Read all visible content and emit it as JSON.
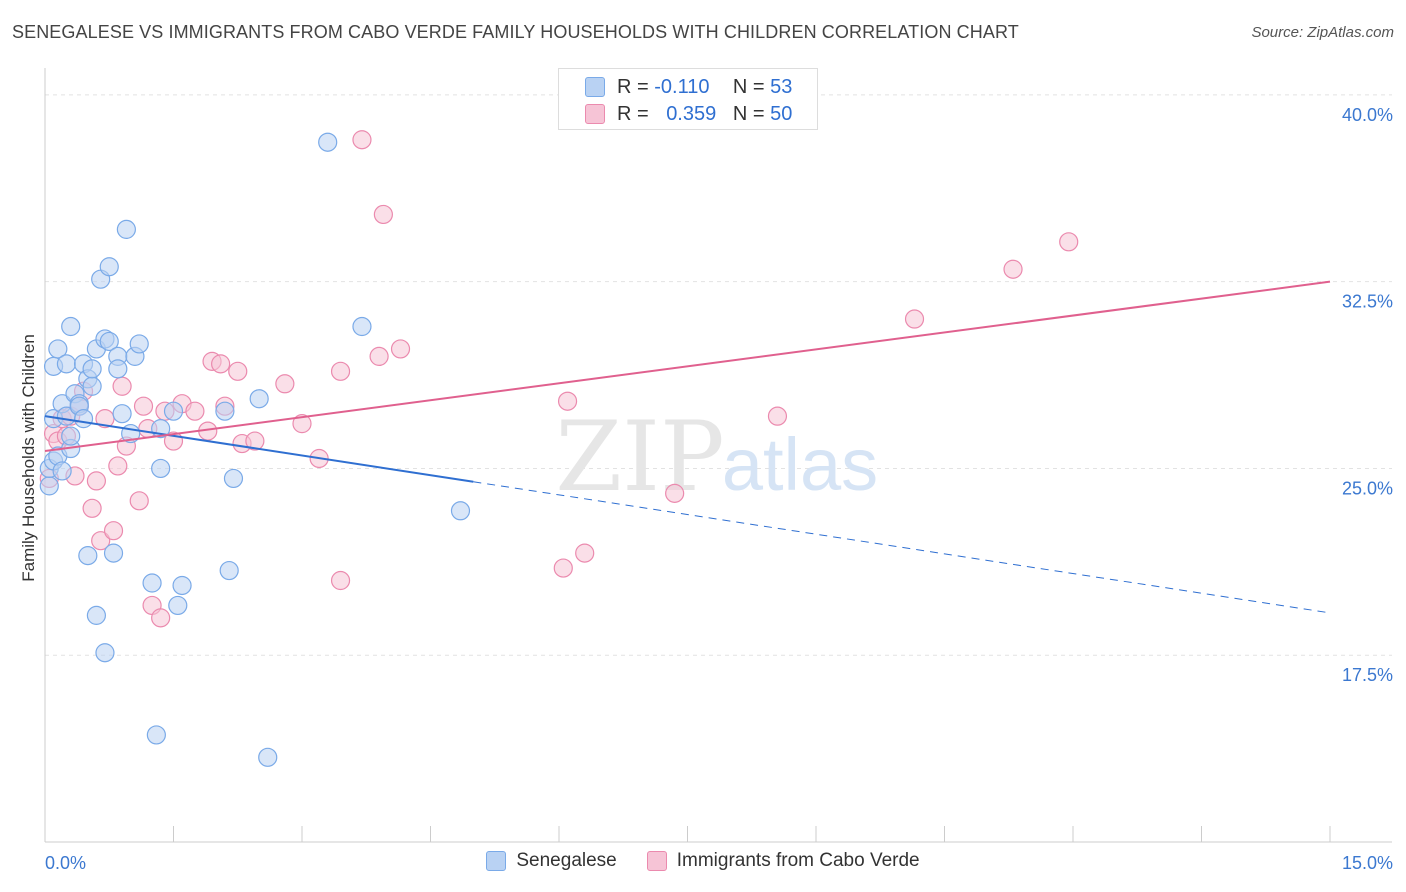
{
  "title": "SENEGALESE VS IMMIGRANTS FROM CABO VERDE FAMILY HOUSEHOLDS WITH CHILDREN CORRELATION CHART",
  "source": "Source: ZipAtlas.com",
  "watermark": {
    "zip": "ZIP",
    "atlas": "atlas"
  },
  "colors": {
    "blue": "#7aaae8",
    "blue_fill": "#b9d2f3",
    "blue_line": "#2f6fd1",
    "pink": "#eb8aae",
    "pink_fill": "#f6c4d6",
    "pink_line": "#e0608e",
    "axis_text": "#3b78d0"
  },
  "stats": [
    {
      "r_label": "R =",
      "r_value": "-0.110",
      "n_label": "N =",
      "n_value": "53",
      "series": "blue"
    },
    {
      "r_label": "R =",
      "r_value": "0.359",
      "n_label": "N =",
      "n_value": "50",
      "series": "pink"
    }
  ],
  "legend": [
    {
      "label": "Senegalese",
      "series": "blue"
    },
    {
      "label": "Immigrants from Cabo Verde",
      "series": "pink"
    }
  ],
  "chart_data": {
    "type": "scatter",
    "title": "SENEGALESE VS IMMIGRANTS FROM CABO VERDE FAMILY HOUSEHOLDS WITH CHILDREN CORRELATION CHART",
    "xlabel": "",
    "ylabel": "Family Households with Children",
    "xlim": [
      0,
      15
    ],
    "ylim": [
      10.0,
      41.0
    ],
    "x_tick_labels": [
      {
        "value": 0,
        "label": "0.0%"
      },
      {
        "value": 15,
        "label": "15.0%"
      }
    ],
    "y_ticks": [
      {
        "value": 17.5,
        "label": "17.5%"
      },
      {
        "value": 25.0,
        "label": "25.0%"
      },
      {
        "value": 32.5,
        "label": "32.5%"
      },
      {
        "value": 40.0,
        "label": "40.0%"
      }
    ],
    "grid": true,
    "legend_position": "bottom",
    "series": [
      {
        "name": "Senegalese",
        "points": [
          [
            0.05,
            24.3
          ],
          [
            0.05,
            25.0
          ],
          [
            0.1,
            25.3
          ],
          [
            0.1,
            27.0
          ],
          [
            0.1,
            29.1
          ],
          [
            0.15,
            25.5
          ],
          [
            0.15,
            29.8
          ],
          [
            0.2,
            24.9
          ],
          [
            0.2,
            27.6
          ],
          [
            0.25,
            27.1
          ],
          [
            0.25,
            29.2
          ],
          [
            0.3,
            25.8
          ],
          [
            0.3,
            26.3
          ],
          [
            0.3,
            30.7
          ],
          [
            0.35,
            28.0
          ],
          [
            0.4,
            27.6
          ],
          [
            0.4,
            27.5
          ],
          [
            0.45,
            29.2
          ],
          [
            0.5,
            28.6
          ],
          [
            0.5,
            21.5
          ],
          [
            0.55,
            28.3
          ],
          [
            0.55,
            29.0
          ],
          [
            0.6,
            29.8
          ],
          [
            0.6,
            19.1
          ],
          [
            0.65,
            32.6
          ],
          [
            0.7,
            30.2
          ],
          [
            0.7,
            17.6
          ],
          [
            0.75,
            30.1
          ],
          [
            0.75,
            33.1
          ],
          [
            0.8,
            21.6
          ],
          [
            0.85,
            29.5
          ],
          [
            0.85,
            29.0
          ],
          [
            0.9,
            27.2
          ],
          [
            0.95,
            34.6
          ],
          [
            1.0,
            26.4
          ],
          [
            1.05,
            29.5
          ],
          [
            1.1,
            30.0
          ],
          [
            1.25,
            20.4
          ],
          [
            1.3,
            14.3
          ],
          [
            1.35,
            25.0
          ],
          [
            1.5,
            27.3
          ],
          [
            1.55,
            19.5
          ],
          [
            1.6,
            20.3
          ],
          [
            2.1,
            27.3
          ],
          [
            2.15,
            20.9
          ],
          [
            2.2,
            24.6
          ],
          [
            2.5,
            27.8
          ],
          [
            2.6,
            13.4
          ],
          [
            3.3,
            38.1
          ],
          [
            3.7,
            30.7
          ],
          [
            4.85,
            23.3
          ],
          [
            1.35,
            26.6
          ],
          [
            0.45,
            27.0
          ]
        ]
      },
      {
        "name": "Immigrants from Cabo Verde",
        "points": [
          [
            0.05,
            24.6
          ],
          [
            0.1,
            26.4
          ],
          [
            0.15,
            26.1
          ],
          [
            0.2,
            27.0
          ],
          [
            0.3,
            27.1
          ],
          [
            0.35,
            24.7
          ],
          [
            0.4,
            27.5
          ],
          [
            0.45,
            28.1
          ],
          [
            0.55,
            23.4
          ],
          [
            0.6,
            24.5
          ],
          [
            0.65,
            22.1
          ],
          [
            0.7,
            27.0
          ],
          [
            0.8,
            22.5
          ],
          [
            0.85,
            25.1
          ],
          [
            0.9,
            28.3
          ],
          [
            0.95,
            25.9
          ],
          [
            1.1,
            23.7
          ],
          [
            1.15,
            27.5
          ],
          [
            1.2,
            26.6
          ],
          [
            1.25,
            19.5
          ],
          [
            1.35,
            19.0
          ],
          [
            1.4,
            27.3
          ],
          [
            1.5,
            26.1
          ],
          [
            1.6,
            27.6
          ],
          [
            1.75,
            27.3
          ],
          [
            1.9,
            26.5
          ],
          [
            1.95,
            29.3
          ],
          [
            2.05,
            29.2
          ],
          [
            2.1,
            27.5
          ],
          [
            2.25,
            28.9
          ],
          [
            2.3,
            26.0
          ],
          [
            2.45,
            26.1
          ],
          [
            2.8,
            28.4
          ],
          [
            3.0,
            26.8
          ],
          [
            3.2,
            25.4
          ],
          [
            3.45,
            28.9
          ],
          [
            3.45,
            20.5
          ],
          [
            3.7,
            38.2
          ],
          [
            3.9,
            29.5
          ],
          [
            3.95,
            35.2
          ],
          [
            4.15,
            29.8
          ],
          [
            6.05,
            21.0
          ],
          [
            6.1,
            27.7
          ],
          [
            6.3,
            21.6
          ],
          [
            7.35,
            24.0
          ],
          [
            8.55,
            27.1
          ],
          [
            10.15,
            31.0
          ],
          [
            11.3,
            33.0
          ],
          [
            11.95,
            34.1
          ],
          [
            0.25,
            26.3
          ]
        ]
      }
    ],
    "trendlines": [
      {
        "series": "Senegalese",
        "x": [
          0,
          15
        ],
        "y": [
          27.1,
          19.2
        ],
        "solid_until_x": 5.0
      },
      {
        "series": "Immigrants from Cabo Verde",
        "x": [
          0,
          15
        ],
        "y": [
          25.7,
          32.5
        ]
      }
    ]
  }
}
